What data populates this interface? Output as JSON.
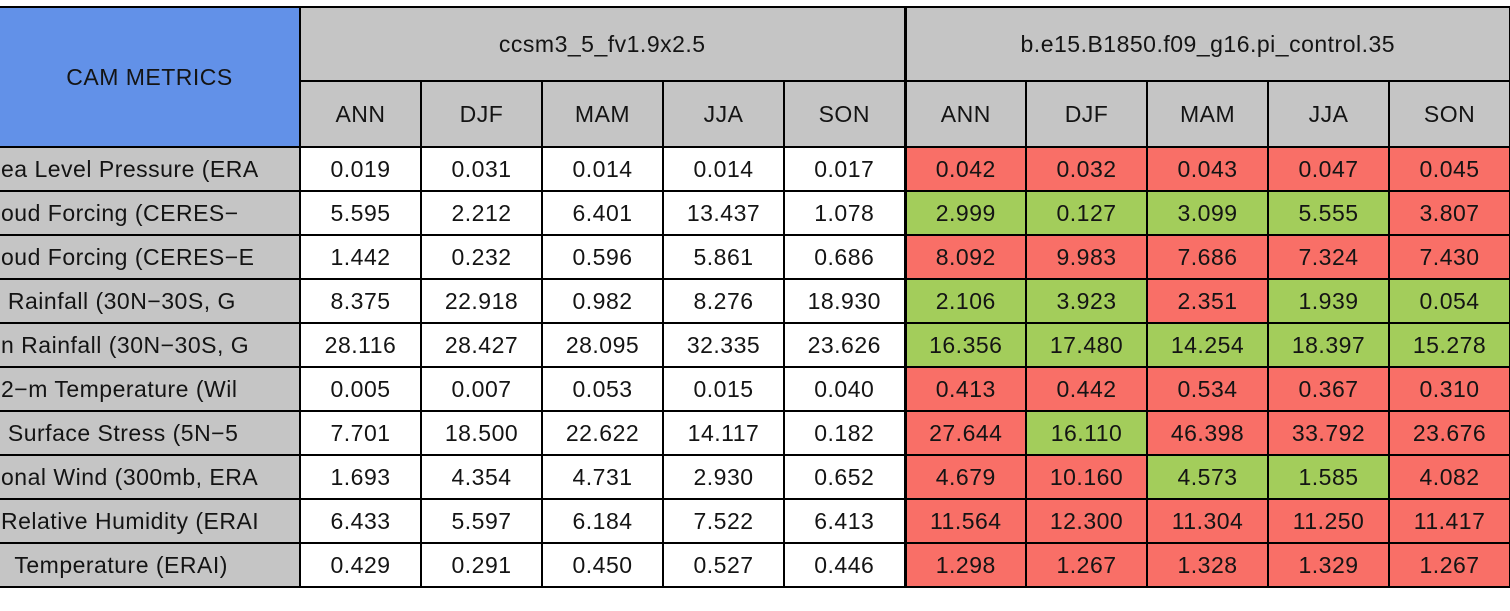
{
  "colors": {
    "corner_bg": "#6291E8",
    "header_bg": "#C5C5C5",
    "label_bg": "#C5C5C5",
    "green": "#A3CD5B",
    "red": "#F96F67",
    "white": "#FFFFFF",
    "border": "#000000"
  },
  "chart_data": {
    "type": "table",
    "title": "CAM METRICS",
    "column_groups": [
      "ccsm3_5_fv1.9x2.5",
      "b.e15.B1850.f09_g16.pi_control.35"
    ],
    "seasons": [
      "ANN",
      "DJF",
      "MAM",
      "JJA",
      "SON"
    ],
    "rows": [
      {
        "label": "ea Level Pressure (ERA",
        "model1_values": [
          "0.019",
          "0.031",
          "0.014",
          "0.014",
          "0.017"
        ],
        "model2_values": [
          "0.042",
          "0.032",
          "0.043",
          "0.047",
          "0.045"
        ],
        "model2_colors": [
          "red",
          "red",
          "red",
          "red",
          "red"
        ]
      },
      {
        "label": "oud Forcing (CERES−",
        "model1_values": [
          "5.595",
          "2.212",
          "6.401",
          "13.437",
          "1.078"
        ],
        "model2_values": [
          "2.999",
          "0.127",
          "3.099",
          "5.555",
          "3.807"
        ],
        "model2_colors": [
          "green",
          "green",
          "green",
          "green",
          "red"
        ]
      },
      {
        "label": "oud Forcing (CERES−E",
        "model1_values": [
          "1.442",
          "0.232",
          "0.596",
          "5.861",
          "0.686"
        ],
        "model2_values": [
          "8.092",
          "9.983",
          "7.686",
          "7.324",
          "7.430"
        ],
        "model2_colors": [
          "red",
          "red",
          "red",
          "red",
          "red"
        ]
      },
      {
        "label": " Rainfall (30N−30S, G",
        "model1_values": [
          "8.375",
          "22.918",
          "0.982",
          "8.276",
          "18.930"
        ],
        "model2_values": [
          "2.106",
          "3.923",
          "2.351",
          "1.939",
          "0.054"
        ],
        "model2_colors": [
          "green",
          "green",
          "red",
          "green",
          "green"
        ]
      },
      {
        "label": "n Rainfall (30N−30S, G",
        "model1_values": [
          "28.116",
          "28.427",
          "28.095",
          "32.335",
          "23.626"
        ],
        "model2_values": [
          "16.356",
          "17.480",
          "14.254",
          "18.397",
          "15.278"
        ],
        "model2_colors": [
          "green",
          "green",
          "green",
          "green",
          "green"
        ]
      },
      {
        "label": "2−m Temperature (Wil",
        "model1_values": [
          "0.005",
          "0.007",
          "0.053",
          "0.015",
          "0.040"
        ],
        "model2_values": [
          "0.413",
          "0.442",
          "0.534",
          "0.367",
          "0.310"
        ],
        "model2_colors": [
          "red",
          "red",
          "red",
          "red",
          "red"
        ]
      },
      {
        "label": " Surface Stress (5N−5",
        "model1_values": [
          "7.701",
          "18.500",
          "22.622",
          "14.117",
          "0.182"
        ],
        "model2_values": [
          "27.644",
          "16.110",
          "46.398",
          "33.792",
          "23.676"
        ],
        "model2_colors": [
          "red",
          "green",
          "red",
          "red",
          "red"
        ]
      },
      {
        "label": "onal Wind (300mb, ERA",
        "model1_values": [
          "1.693",
          "4.354",
          "4.731",
          "2.930",
          "0.652"
        ],
        "model2_values": [
          "4.679",
          "10.160",
          "4.573",
          "1.585",
          "4.082"
        ],
        "model2_colors": [
          "red",
          "red",
          "green",
          "green",
          "red"
        ]
      },
      {
        "label": "Relative Humidity (ERAI",
        "model1_values": [
          "6.433",
          "5.597",
          "6.184",
          "7.522",
          "6.413"
        ],
        "model2_values": [
          "11.564",
          "12.300",
          "11.304",
          "11.250",
          "11.417"
        ],
        "model2_colors": [
          "red",
          "red",
          "red",
          "red",
          "red"
        ]
      },
      {
        "label": "  Temperature (ERAI)",
        "model1_values": [
          "0.429",
          "0.291",
          "0.450",
          "0.527",
          "0.446"
        ],
        "model2_values": [
          "1.298",
          "1.267",
          "1.328",
          "1.329",
          "1.267"
        ],
        "model2_colors": [
          "red",
          "red",
          "red",
          "red",
          "red"
        ]
      }
    ]
  }
}
